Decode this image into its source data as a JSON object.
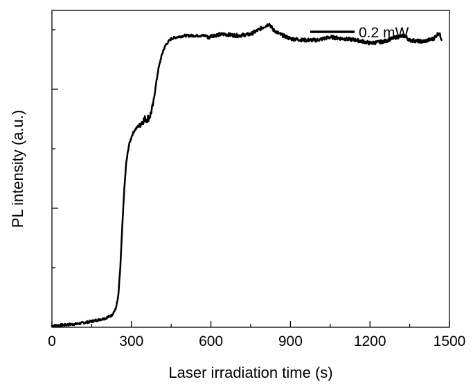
{
  "chart_data": {
    "type": "line",
    "title": "",
    "xlabel": "Laser irradiation time (s)",
    "ylabel": "PL intensity (a.u.)",
    "xlim": [
      0,
      1500
    ],
    "ylim": [
      0,
      1.065
    ],
    "x_ticks": [
      0,
      300,
      600,
      900,
      1200,
      1500
    ],
    "x_tick_labels": [
      "0",
      "300",
      "600",
      "900",
      "1200",
      "1500"
    ],
    "x_minor_ticks": [
      150,
      450,
      750,
      1050,
      1350
    ],
    "y_ticks_major": [
      0.4,
      0.8
    ],
    "y_ticks_minor": [
      0.2,
      0.6,
      1.0
    ],
    "y_tick_labels_shown": false,
    "grid": false,
    "legend": {
      "position": "top-right",
      "entries": [
        "0.2 mW"
      ]
    },
    "series": [
      {
        "name": "0.2 mW",
        "color": "#000000",
        "x": [
          0,
          50,
          100,
          150,
          200,
          225,
          240,
          250,
          258,
          265,
          272,
          280,
          290,
          300,
          310,
          320,
          330,
          340,
          350,
          360,
          370,
          380,
          390,
          400,
          410,
          420,
          430,
          440,
          450,
          470,
          500,
          550,
          585,
          590,
          600,
          650,
          700,
          750,
          780,
          800,
          820,
          835,
          860,
          900,
          950,
          1000,
          1050,
          1100,
          1150,
          1200,
          1250,
          1300,
          1330,
          1350,
          1400,
          1440,
          1460,
          1470
        ],
        "y": [
          0.005,
          0.008,
          0.012,
          0.02,
          0.03,
          0.04,
          0.06,
          0.1,
          0.2,
          0.33,
          0.45,
          0.55,
          0.61,
          0.64,
          0.66,
          0.67,
          0.68,
          0.69,
          0.7,
          0.7,
          0.71,
          0.74,
          0.8,
          0.86,
          0.9,
          0.93,
          0.95,
          0.96,
          0.97,
          0.975,
          0.98,
          0.98,
          0.98,
          0.97,
          0.98,
          0.985,
          0.98,
          0.985,
          1.0,
          1.01,
          1.02,
          1.0,
          0.985,
          0.97,
          0.965,
          0.965,
          0.975,
          0.97,
          0.965,
          0.955,
          0.96,
          0.975,
          0.98,
          0.965,
          0.96,
          0.97,
          0.99,
          0.97
        ]
      }
    ]
  }
}
